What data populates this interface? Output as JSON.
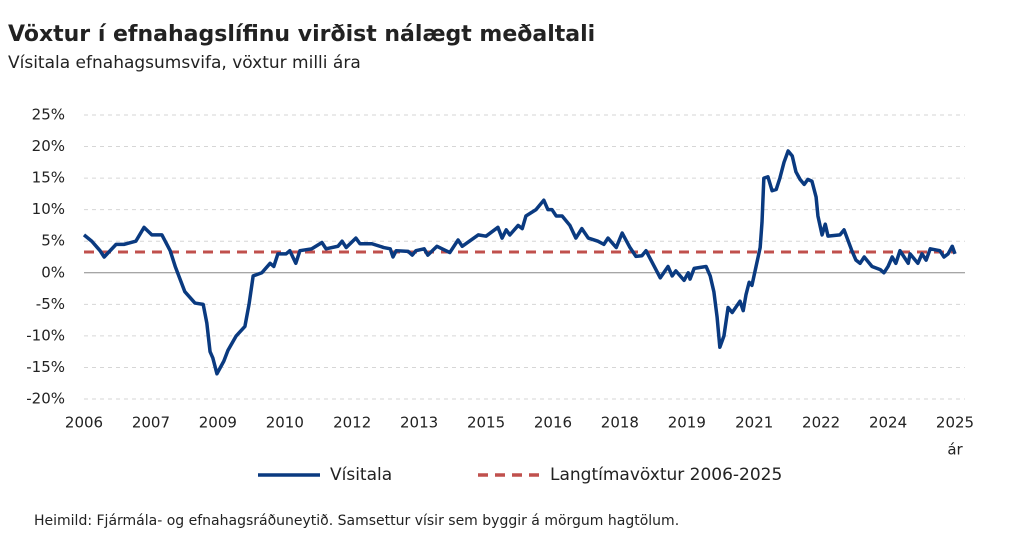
{
  "chart_data": {
    "type": "line",
    "title": "Vöxtur í efnahagslífinu virðist nálægt meðaltali",
    "subtitle": "Vísitala efnahagsumsvifa, vöxtur milli ára",
    "x_label": "ár",
    "source": "Heimild: Fjármála- og efnahagsráðuneytið. Samsettur vísir sem byggir á mörgum hagtölum.",
    "xlim": [
      2006,
      2025
    ],
    "xticks": [
      {
        "value": 2006,
        "label": "2006"
      },
      {
        "value": 2007.46,
        "label": "2007"
      },
      {
        "value": 2008.92,
        "label": "2009"
      },
      {
        "value": 2010.38,
        "label": "2010"
      },
      {
        "value": 2011.85,
        "label": "2012"
      },
      {
        "value": 2013.31,
        "label": "2013"
      },
      {
        "value": 2014.77,
        "label": "2015"
      },
      {
        "value": 2016.23,
        "label": "2016"
      },
      {
        "value": 2017.69,
        "label": "2018"
      },
      {
        "value": 2019.15,
        "label": "2019"
      },
      {
        "value": 2020.62,
        "label": "2021"
      },
      {
        "value": 2022.08,
        "label": "2022"
      },
      {
        "value": 2023.54,
        "label": "2024"
      },
      {
        "value": 2025,
        "label": "2025"
      }
    ],
    "ylim": [
      -20,
      25
    ],
    "yticks": [
      {
        "value": -20,
        "label": "-20%"
      },
      {
        "value": -15,
        "label": "-15%"
      },
      {
        "value": -10,
        "label": "-10%"
      },
      {
        "value": -5,
        "label": "-5%"
      },
      {
        "value": 0,
        "label": "0%"
      },
      {
        "value": 5,
        "label": "5%"
      },
      {
        "value": 10,
        "label": "10%"
      },
      {
        "value": 15,
        "label": "15%"
      },
      {
        "value": 20,
        "label": "20%"
      },
      {
        "value": 25,
        "label": "25%"
      }
    ],
    "grid": true,
    "x": [
      2006.0,
      2006.17,
      2006.35,
      2006.44,
      2006.7,
      2006.87,
      2007.13,
      2007.31,
      2007.48,
      2007.7,
      2007.88,
      2007.99,
      2008.2,
      2008.42,
      2008.6,
      2008.68,
      2008.75,
      2008.81,
      2008.9,
      2009.05,
      2009.14,
      2009.32,
      2009.51,
      2009.6,
      2009.69,
      2009.88,
      2010.06,
      2010.14,
      2010.23,
      2010.41,
      2010.49,
      2010.62,
      2010.71,
      2010.97,
      2011.19,
      2011.28,
      2011.54,
      2011.63,
      2011.72,
      2011.93,
      2012.02,
      2012.28,
      2012.54,
      2012.68,
      2012.74,
      2012.81,
      2013.07,
      2013.16,
      2013.24,
      2013.42,
      2013.5,
      2013.7,
      2013.98,
      2014.16,
      2014.25,
      2014.6,
      2014.77,
      2015.03,
      2015.12,
      2015.21,
      2015.29,
      2015.47,
      2015.56,
      2015.64,
      2015.86,
      2016.03,
      2016.12,
      2016.21,
      2016.3,
      2016.43,
      2016.6,
      2016.73,
      2016.86,
      2017.0,
      2017.21,
      2017.34,
      2017.43,
      2017.61,
      2017.74,
      2017.91,
      2018.04,
      2018.17,
      2018.26,
      2018.44,
      2018.57,
      2018.74,
      2018.83,
      2018.91,
      2019.09,
      2019.18,
      2019.22,
      2019.31,
      2019.57,
      2019.66,
      2019.74,
      2019.81,
      2019.87,
      2019.96,
      2020.05,
      2020.14,
      2020.31,
      2020.38,
      2020.44,
      2020.51,
      2020.57,
      2020.66,
      2020.75,
      2020.79,
      2020.83,
      2020.92,
      2021.01,
      2021.1,
      2021.18,
      2021.27,
      2021.36,
      2021.45,
      2021.53,
      2021.62,
      2021.71,
      2021.79,
      2021.88,
      2021.97,
      2022.01,
      2022.1,
      2022.17,
      2022.23,
      2022.49,
      2022.58,
      2022.75,
      2022.84,
      2022.93,
      2023.02,
      2023.19,
      2023.37,
      2023.45,
      2023.54,
      2023.63,
      2023.71,
      2023.8,
      2023.89,
      2023.98,
      2024.02,
      2024.19,
      2024.28,
      2024.37,
      2024.46,
      2024.67,
      2024.76,
      2024.85,
      2024.94,
      2025.0
    ],
    "series": [
      {
        "name": "Vísitala",
        "color": "#0a3a80",
        "values": [
          6,
          5,
          3.5,
          2.5,
          4.5,
          4.5,
          5,
          7.2,
          6,
          6,
          3.5,
          1,
          -3,
          -4.8,
          -5,
          -8,
          -12.5,
          -13.5,
          -16,
          -14,
          -12.3,
          -10,
          -8.5,
          -5,
          -0.5,
          0,
          1.5,
          1,
          3,
          3,
          3.5,
          1.5,
          3.5,
          3.8,
          4.8,
          3.8,
          4.2,
          5,
          4,
          5.5,
          4.6,
          4.6,
          4,
          3.8,
          2.5,
          3.5,
          3.4,
          2.8,
          3.5,
          3.8,
          2.8,
          4.2,
          3.2,
          5.2,
          4.2,
          6,
          5.8,
          7.2,
          5.5,
          6.8,
          6,
          7.5,
          7,
          9,
          10,
          11.5,
          10,
          10,
          9,
          9,
          7.5,
          5.5,
          7,
          5.5,
          5,
          4.5,
          5.5,
          4,
          6.3,
          4,
          2.6,
          2.7,
          3.5,
          1,
          -0.8,
          1,
          -0.5,
          0.3,
          -1.2,
          0,
          -1,
          0.7,
          1,
          -0.5,
          -3,
          -7,
          -11.8,
          -10,
          -5.5,
          -6.3,
          -4.5,
          -6,
          -3.5,
          -1.5,
          -2,
          1,
          4,
          8,
          15,
          15.2,
          13,
          13.2,
          15,
          17.5,
          19.3,
          18.5,
          16,
          14.8,
          14,
          14.8,
          14.5,
          12,
          9,
          6,
          7.7,
          5.8,
          6,
          6.8,
          3.5,
          2,
          1.5,
          2.5,
          1,
          0.5,
          0,
          1,
          2.5,
          1.5,
          3.5,
          2.5,
          1.5,
          3,
          1.5,
          3,
          2,
          3.8,
          3.5,
          2.5,
          3,
          4.2,
          3
        ]
      }
    ],
    "reference_line": {
      "name": "Langtímavöxtur 2006-2025",
      "value": 3.3,
      "color": "#c0504d"
    }
  }
}
